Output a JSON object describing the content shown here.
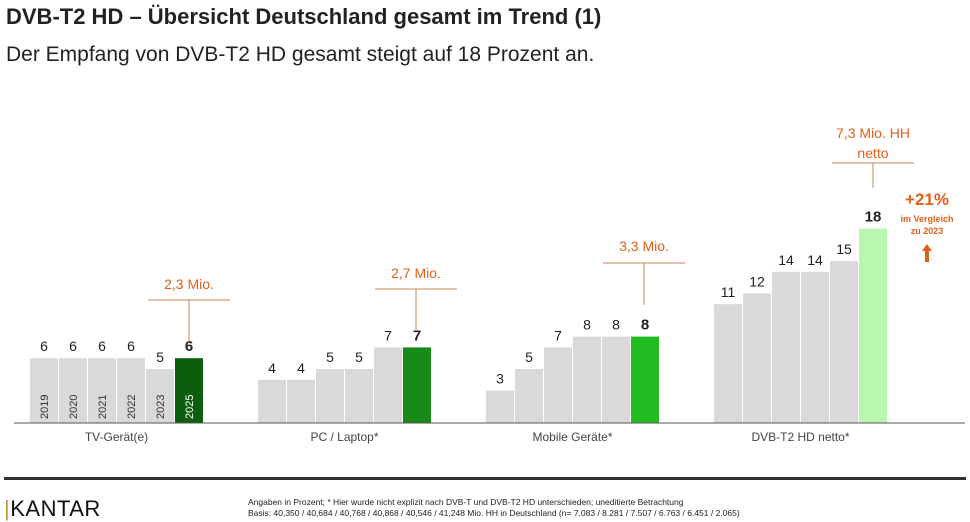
{
  "title": "DVB-T2 HD – Übersicht Deutschland gesamt im Trend (1)",
  "subtitle": "Der Empfang von DVB-T2 HD gesamt steigt auf 18 Prozent an.",
  "chart_data": {
    "type": "bar",
    "years": [
      "2019",
      "2020",
      "2021",
      "2022",
      "2023",
      "2025"
    ],
    "groups": [
      {
        "name": "TV-Gerät(e)",
        "values": [
          6,
          6,
          6,
          6,
          5,
          6
        ],
        "highlight_color": "#0b5e0b",
        "annotation": "2,3 Mio."
      },
      {
        "name": "PC / Laptop*",
        "values": [
          4,
          4,
          5,
          5,
          7,
          7
        ],
        "highlight_color": "#178a17",
        "annotation": "2,7 Mio."
      },
      {
        "name": "Mobile Geräte*",
        "values": [
          3,
          5,
          7,
          8,
          8,
          8
        ],
        "highlight_color": "#22bb22",
        "annotation": "3,3 Mio."
      },
      {
        "name": "DVB-T2 HD netto*",
        "values": [
          11,
          12,
          14,
          14,
          15,
          18
        ],
        "highlight_color": "#b8f7b0",
        "annotation": "7,3 Mio. HH netto"
      }
    ],
    "base_color": "#d9d9d9",
    "annotation_color": "#e0601a",
    "callout": {
      "value": "+21%",
      "line1": "im Vergleich",
      "line2": "zu 2023",
      "icon": "arrow-up-icon"
    },
    "grid": false
  },
  "footer": {
    "logo": "KANTAR",
    "note1": "Angaben in Prozent; * Hier wurde nicht explizit nach DVB-T und DVB-T2 HD unterschieden; uneditierte Betrachtung",
    "note2": "Basis: 40,350 / 40,684 / 40,768 / 40,868 / 40,546 / 41,248 Mio. HH in Deutschland (n= 7.083 / 8.281 / 7.507 / 6.763 / 6.451 / 2.065)"
  }
}
